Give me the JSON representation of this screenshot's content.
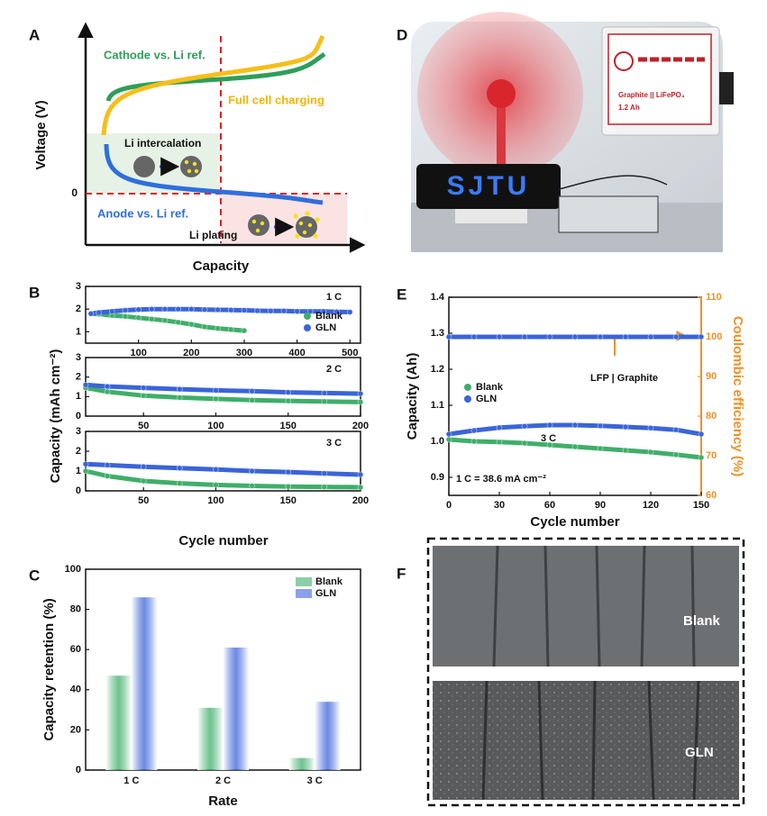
{
  "panels": [
    "A",
    "B",
    "C",
    "D",
    "E",
    "F"
  ],
  "schematic": {
    "ylabel": "Voltage (V)",
    "xlabel": "Capacity",
    "zero": "0",
    "cathode": "Cathode vs. Li ref.",
    "full_cell": "Full cell charging",
    "intercalation": "Li intercalation",
    "anode": "Anode vs. Li ref.",
    "plating": "Li plating"
  },
  "photos": {
    "display": "SJTU",
    "cell": "Graphite || LiFePO₄",
    "capacity": "1.2 Ah",
    "top": "Blank",
    "bottom": "GLN"
  },
  "panel_b": {
    "ylabel": "Capacity (mAh cm⁻²)",
    "xlabel": "Cycle number"
  },
  "chart_data": [
    {
      "type": "line",
      "annotations": [
        "1 C"
      ],
      "legend": "lower right",
      "x": [
        10,
        25,
        50,
        75,
        100,
        125,
        150,
        175,
        200,
        225,
        250,
        275,
        300,
        325,
        350,
        375,
        400,
        425,
        450,
        475,
        500
      ],
      "xlim": [
        0,
        520
      ],
      "xticks": [
        100,
        200,
        300,
        400,
        500
      ],
      "ylim": [
        0.5,
        3
      ],
      "yticks": [
        1,
        2,
        3
      ],
      "series": [
        {
          "name": "Blank",
          "color": "#3fae6a",
          "values": [
            1.8,
            1.78,
            1.72,
            1.68,
            1.62,
            1.56,
            1.5,
            1.42,
            1.33,
            1.22,
            1.15,
            1.1,
            1.05,
            null,
            null,
            null,
            null,
            null,
            null,
            null,
            null
          ]
        },
        {
          "name": "GLN",
          "color": "#3a64d8",
          "values": [
            1.8,
            1.85,
            1.9,
            1.95,
            1.98,
            2.0,
            2.0,
            2.0,
            2.0,
            1.98,
            1.97,
            1.96,
            1.95,
            1.93,
            1.92,
            1.92,
            1.9,
            1.9,
            1.9,
            1.88,
            1.87
          ]
        }
      ]
    },
    {
      "type": "line",
      "annotations": [
        "2 C"
      ],
      "x": [
        10,
        25,
        50,
        75,
        100,
        125,
        150,
        175,
        200
      ],
      "xlim": [
        10,
        200
      ],
      "xticks": [
        50,
        100,
        150,
        200
      ],
      "ylim": [
        0,
        3
      ],
      "yticks": [
        0,
        1,
        2,
        3
      ],
      "series": [
        {
          "color": "#3fae6a",
          "values": [
            1.45,
            1.25,
            1.05,
            0.95,
            0.88,
            0.82,
            0.78,
            0.75,
            0.72
          ]
        },
        {
          "color": "#3a64d8",
          "values": [
            1.6,
            1.52,
            1.45,
            1.38,
            1.32,
            1.28,
            1.22,
            1.18,
            1.15
          ]
        }
      ]
    },
    {
      "type": "line",
      "annotations": [
        "3 C"
      ],
      "x": [
        10,
        25,
        50,
        75,
        100,
        125,
        150,
        175,
        200
      ],
      "xlim": [
        10,
        200
      ],
      "xticks": [
        50,
        100,
        150,
        200
      ],
      "ylim": [
        0,
        3
      ],
      "yticks": [
        0,
        1,
        2,
        3
      ],
      "series": [
        {
          "color": "#3fae6a",
          "values": [
            1.0,
            0.75,
            0.5,
            0.38,
            0.3,
            0.25,
            0.22,
            0.2,
            0.18
          ]
        },
        {
          "color": "#3a64d8",
          "values": [
            1.35,
            1.3,
            1.22,
            1.15,
            1.08,
            1.0,
            0.95,
            0.88,
            0.82
          ]
        }
      ]
    },
    {
      "type": "bar",
      "xlabel": "Rate",
      "ylabel": "Capacity retention (%)",
      "legend": "upper right",
      "categories": [
        "1 C",
        "2 C",
        "3 C"
      ],
      "ylim": [
        0,
        100
      ],
      "yticks": [
        0,
        20,
        40,
        60,
        80,
        100
      ],
      "series": [
        {
          "name": "Blank",
          "color": "#3fae6a",
          "values": [
            47,
            31,
            6
          ]
        },
        {
          "name": "GLN",
          "color": "#3a64d8",
          "values": [
            86,
            61,
            34
          ]
        }
      ]
    },
    {
      "type": "line",
      "xlabel": "Cycle number",
      "ylabel": "Capacity (Ah)",
      "y2label": "Coulombic efficiency (%)",
      "y2color": "#f0902a",
      "annotations": [
        "LFP | Graphite",
        "3 C",
        "1 C = 38.6 mA cm⁻²"
      ],
      "legend": "middle left",
      "x": [
        0,
        15,
        30,
        45,
        60,
        75,
        90,
        105,
        120,
        135,
        150
      ],
      "xlim": [
        0,
        150
      ],
      "xticks": [
        0,
        30,
        60,
        90,
        120,
        150
      ],
      "ylim": [
        0.85,
        1.4
      ],
      "yticks": [
        0.9,
        {
          "value": 1,
          "label": "1.0"
        },
        1.1,
        1.2,
        1.3,
        1.4
      ],
      "y2lim": [
        60,
        110
      ],
      "y2ticks": [
        60,
        70,
        80,
        90,
        100,
        110
      ],
      "series": [
        {
          "name": "Blank",
          "color": "#3fae6a",
          "values": [
            1.005,
            1.0,
            0.998,
            0.995,
            0.99,
            0.985,
            0.98,
            0.975,
            0.97,
            0.963,
            0.955
          ]
        },
        {
          "name": "GLN",
          "color": "#3a64d8",
          "values": [
            1.02,
            1.03,
            1.038,
            1.042,
            1.045,
            1.045,
            1.043,
            1.04,
            1.037,
            1.032,
            1.02
          ]
        },
        {
          "color": "#3a64d8",
          "axis": "y2",
          "values": [
            100,
            100,
            100,
            100,
            100,
            100,
            100,
            100,
            100,
            100,
            100
          ]
        }
      ]
    }
  ]
}
